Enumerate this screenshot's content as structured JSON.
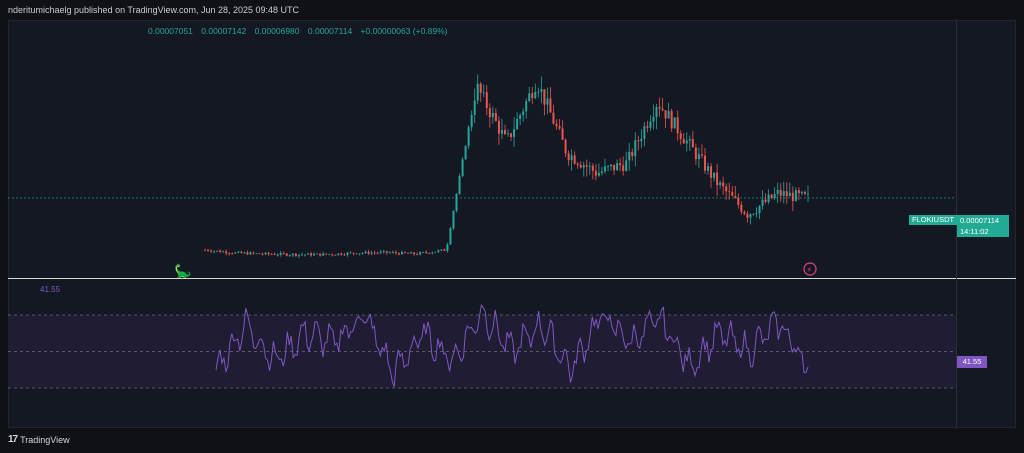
{
  "header": {
    "published": "nderitumichaelg published on TradingView.com, Jun 28, 2025 09:48 UTC"
  },
  "ohlc": {
    "open": "0.00007051",
    "high": "0.00007142",
    "low": "0.00006980",
    "close": "0.00007114",
    "change": "+0.00000063 (+0.89%)"
  },
  "symbol_tag": "FLOKIUSDT",
  "price_label": {
    "price": "0.00007114",
    "countdown": "14:11:02"
  },
  "rsi": {
    "value_label": "41.55",
    "tag": "41.55"
  },
  "footer": {
    "brand": "TradingView"
  },
  "colors": {
    "up": "#26a69a",
    "down": "#ef5350",
    "rsi": "#7e57c2",
    "band": "#1f1c33",
    "price_line": "#22ab94"
  },
  "chart_data": [
    {
      "type": "line",
      "title": "",
      "symbol": "FLOKIUSDT",
      "x": [
        0,
        5,
        10,
        15,
        20,
        25,
        30,
        35,
        40,
        45,
        50,
        55,
        60,
        65,
        70,
        75,
        80,
        85,
        90,
        95,
        100
      ],
      "y": [
        6.1e-05,
        6.04e-05,
        6.02e-05,
        6.01e-05,
        6.01e-05,
        6.04e-05,
        6.05e-05,
        6.02e-05,
        6.1e-05,
        9.3e-05,
        8.2e-05,
        9.4e-05,
        8e-05,
        7.6e-05,
        7.8e-05,
        9e-05,
        8.2e-05,
        7.4e-05,
        6.8e-05,
        7.2e-05,
        7.11e-05
      ],
      "last_value": 7.114e-05
    },
    {
      "type": "line",
      "title": "",
      "x": [
        0,
        5,
        10,
        15,
        20,
        25,
        30,
        35,
        40,
        45,
        50,
        55,
        60,
        65,
        70,
        75,
        80,
        85,
        90,
        95,
        100
      ],
      "y": [
        40,
        65,
        45,
        60,
        55,
        70,
        38,
        60,
        45,
        72,
        50,
        65,
        40,
        70,
        55,
        68,
        42,
        60,
        50,
        66,
        41.55
      ],
      "bands": [
        30,
        50,
        70
      ],
      "last_value": 41.55
    }
  ]
}
